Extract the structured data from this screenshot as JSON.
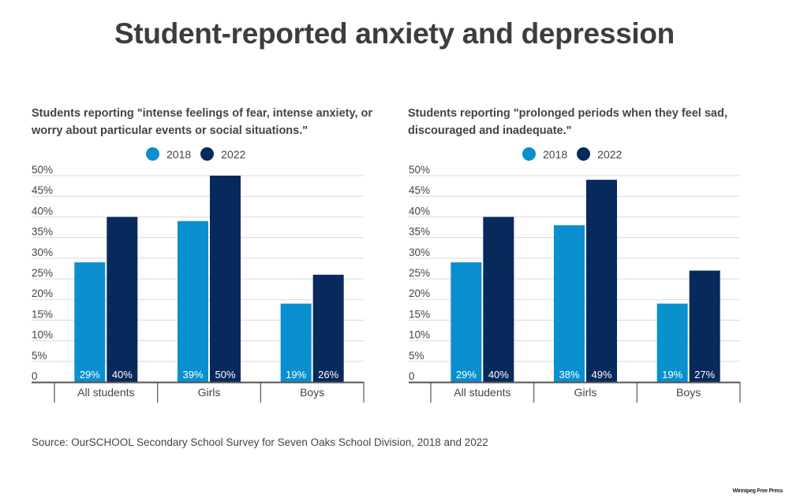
{
  "title": "Student-reported anxiety and depression",
  "source": "Source: OurSCHOOL Secondary School Survey for Seven Oaks School Division, 2018 and 2022",
  "credit": "Winnipeg Free Press",
  "colors": {
    "2018": "#0a8fcf",
    "2022": "#08295c"
  },
  "chart_data": [
    {
      "type": "bar",
      "title": "Students reporting \"intense feelings of fear, intense anxiety, or worry about particular events or social situations.\"",
      "categories": [
        "All students",
        "Girls",
        "Boys"
      ],
      "series": [
        {
          "name": "2018",
          "values": [
            29,
            39,
            19
          ],
          "labels": [
            "29%",
            "39%",
            "19%"
          ]
        },
        {
          "name": "2022",
          "values": [
            40,
            50,
            26
          ],
          "labels": [
            "40%",
            "50%",
            "26%"
          ]
        }
      ],
      "yticks": [
        "0",
        "5%",
        "10%",
        "15%",
        "20%",
        "25%",
        "30%",
        "35%",
        "40%",
        "45%",
        "50%"
      ],
      "ylim": [
        0,
        50
      ],
      "xlabel": "",
      "ylabel": "",
      "grid": true,
      "legend": "top-center"
    },
    {
      "type": "bar",
      "title": "Students reporting \"prolonged periods when they feel sad, discouraged and inadequate.\"",
      "categories": [
        "All students",
        "Girls",
        "Boys"
      ],
      "series": [
        {
          "name": "2018",
          "values": [
            29,
            38,
            19
          ],
          "labels": [
            "29%",
            "38%",
            "19%"
          ]
        },
        {
          "name": "2022",
          "values": [
            40,
            49,
            27
          ],
          "labels": [
            "40%",
            "49%",
            "27%"
          ]
        }
      ],
      "yticks": [
        "0",
        "5%",
        "10%",
        "15%",
        "20%",
        "25%",
        "30%",
        "35%",
        "40%",
        "45%",
        "50%"
      ],
      "ylim": [
        0,
        50
      ],
      "xlabel": "",
      "ylabel": "",
      "grid": true,
      "legend": "top-center"
    }
  ]
}
